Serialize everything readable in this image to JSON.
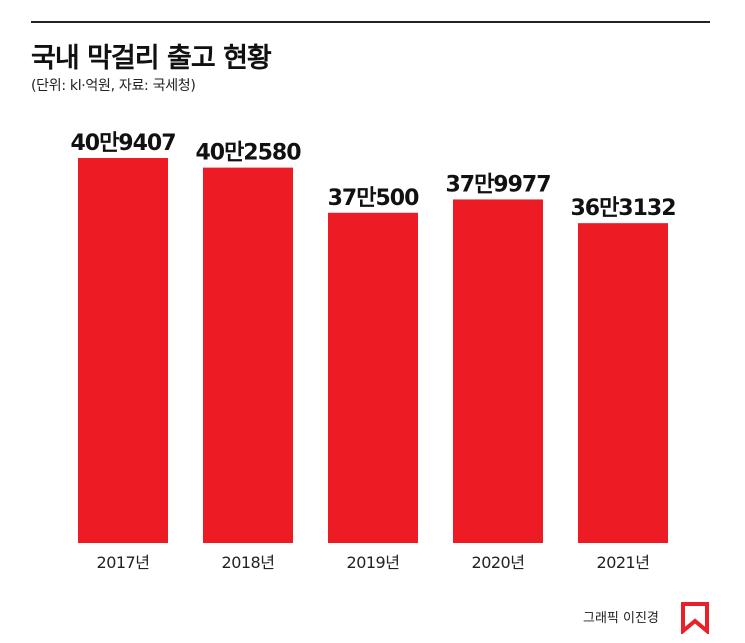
{
  "header": {
    "title": "국내 막걸리 출고 현황",
    "subtitle": "(단위: kl·억원, 자료: 국세청)"
  },
  "credit": "그래픽 이진경",
  "logo": {
    "name": "publisher-logo",
    "color": "#e8202a"
  },
  "colors": {
    "bar": "#ed1c24",
    "text": "#111111"
  },
  "chart_data": {
    "type": "bar",
    "categories": [
      "2017년",
      "2018년",
      "2019년",
      "2020년",
      "2021년"
    ],
    "values": [
      409407,
      402580,
      370500,
      379977,
      363132
    ],
    "data_labels": [
      "40만9407",
      "40만2580",
      "37만500",
      "37만9977",
      "36만3132"
    ],
    "title": "국내 막걸리 출고 현황",
    "subtitle": "(단위: kl·억원, 자료: 국세청)",
    "xlabel": "",
    "ylabel": "",
    "axes_visible": false,
    "grid": false,
    "legend": "none"
  }
}
